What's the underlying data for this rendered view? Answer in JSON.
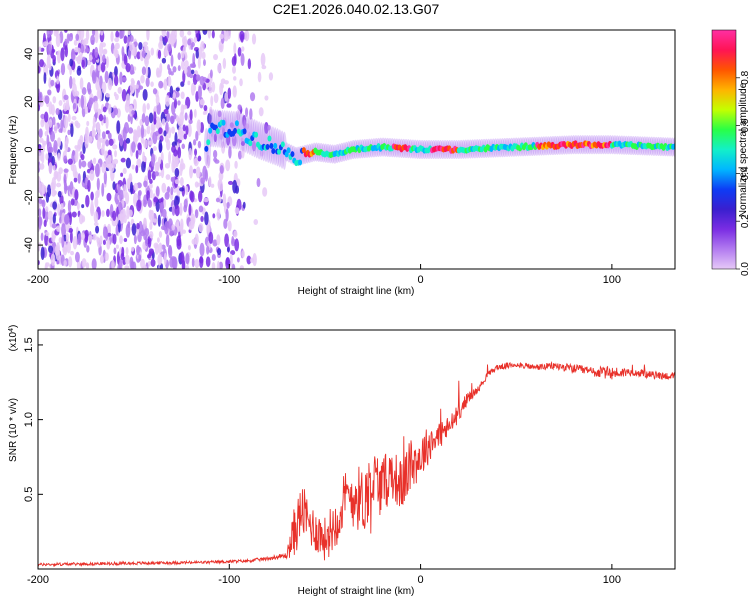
{
  "title": "C2E1.2026.040.02.13.G07",
  "chart_data": [
    {
      "type": "heatmap",
      "xlabel": "Height of straight line (km)",
      "ylabel": "Frequency (Hz)",
      "xlim": [
        -200,
        133
      ],
      "ylim": [
        -50,
        50
      ],
      "xticks": [
        -200,
        -100,
        0,
        100
      ],
      "yticks": [
        -40,
        -20,
        0,
        20,
        40
      ],
      "colorbar": {
        "label": "Normalized spectral amplitude",
        "range": [
          0,
          1
        ],
        "ticks": [
          "0.0",
          "0.2",
          "0.4",
          "0.6",
          "0.8"
        ],
        "tick_values": [
          0,
          0.2,
          0.4,
          0.6,
          0.8
        ]
      },
      "description_ridge": [
        {
          "x": -110,
          "f": 9
        },
        {
          "x": -95,
          "f": 8
        },
        {
          "x": -85,
          "f": 4
        },
        {
          "x": -75,
          "f": 1
        },
        {
          "x": -65,
          "f": -3
        },
        {
          "x": -55,
          "f": -1
        },
        {
          "x": -45,
          "f": -2
        },
        {
          "x": -35,
          "f": 0
        },
        {
          "x": -20,
          "f": 1
        },
        {
          "x": 0,
          "f": 0
        },
        {
          "x": 20,
          "f": 0
        },
        {
          "x": 50,
          "f": 1
        },
        {
          "x": 80,
          "f": 2
        },
        {
          "x": 100,
          "f": 2
        },
        {
          "x": 133,
          "f": 1
        }
      ],
      "noise_region_x": [
        -200,
        -75
      ]
    },
    {
      "type": "line",
      "xlabel": "Height of straight line (km)",
      "ylabel": "SNR (10 * v/v)",
      "scale_label": "(x10",
      "scale_exp": "4",
      "scale_close": ")",
      "xlim": [
        -200,
        133
      ],
      "ylim": [
        0,
        16000
      ],
      "xticks": [
        -200,
        -100,
        0,
        100
      ],
      "yticks": [
        5000,
        10000,
        15000
      ],
      "ytick_labels": [
        "0.5",
        "1.0",
        "1.5"
      ],
      "series": [
        {
          "name": "SNR",
          "color": "#e8312a",
          "x": [
            -200,
            -170,
            -140,
            -110,
            -90,
            -80,
            -70,
            -66,
            -62,
            -58,
            -54,
            -50,
            -45,
            -40,
            -35,
            -30,
            -25,
            -20,
            -15,
            -10,
            -5,
            0,
            5,
            10,
            15,
            20,
            25,
            30,
            35,
            40,
            50,
            60,
            70,
            80,
            90,
            100,
            110,
            120,
            133
          ],
          "values": [
            300,
            350,
            400,
            450,
            550,
            700,
            900,
            2500,
            4000,
            3000,
            2500,
            2000,
            3000,
            4500,
            5000,
            4500,
            6000,
            5500,
            6500,
            5500,
            7000,
            7500,
            8500,
            9000,
            9500,
            10500,
            11500,
            12000,
            13000,
            13500,
            13700,
            13500,
            13600,
            13400,
            13200,
            13100,
            13200,
            13000,
            12900
          ],
          "amplitude": [
            200,
            200,
            200,
            200,
            200,
            250,
            400,
            3500,
            3500,
            3000,
            3000,
            3000,
            3500,
            4000,
            4500,
            4500,
            4500,
            4000,
            3500,
            3500,
            3500,
            3000,
            2500,
            2000,
            1500,
            1200,
            800,
            500,
            400,
            400,
            400,
            400,
            500,
            600,
            700,
            900,
            500,
            500,
            500
          ]
        }
      ]
    }
  ],
  "colors": {
    "colormap": [
      "#ffffff",
      "#e6c9f7",
      "#b27bf0",
      "#7a2de3",
      "#3a1fcf",
      "#0d3cf5",
      "#00b7ff",
      "#13f0c8",
      "#29ff46",
      "#c4ff00",
      "#ffb300",
      "#ff5500",
      "#ff1455",
      "#ff2fa3"
    ]
  }
}
